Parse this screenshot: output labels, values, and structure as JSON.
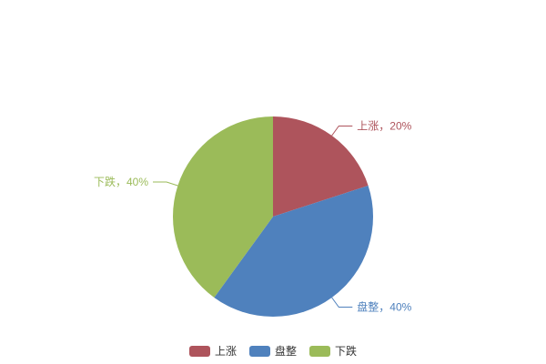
{
  "chart_data": {
    "type": "pie",
    "title": "",
    "unit": "%",
    "start_angle": "top",
    "direction": "clockwise",
    "label_position": "outside-with-leader-lines",
    "legend_position": "bottom-center",
    "background_color": "#ffffff",
    "legend_text_color": "#333333",
    "items": [
      {
        "key": "rise",
        "name": "上涨",
        "value": 20,
        "label": "上涨，20%",
        "color": "#ae545c"
      },
      {
        "key": "sideways",
        "name": "盘整",
        "value": 40,
        "label": "盘整，40%",
        "color": "#4f81bd"
      },
      {
        "key": "fall",
        "name": "下跌",
        "value": 40,
        "label": "下跌，40%",
        "color": "#9bbb59"
      }
    ]
  }
}
